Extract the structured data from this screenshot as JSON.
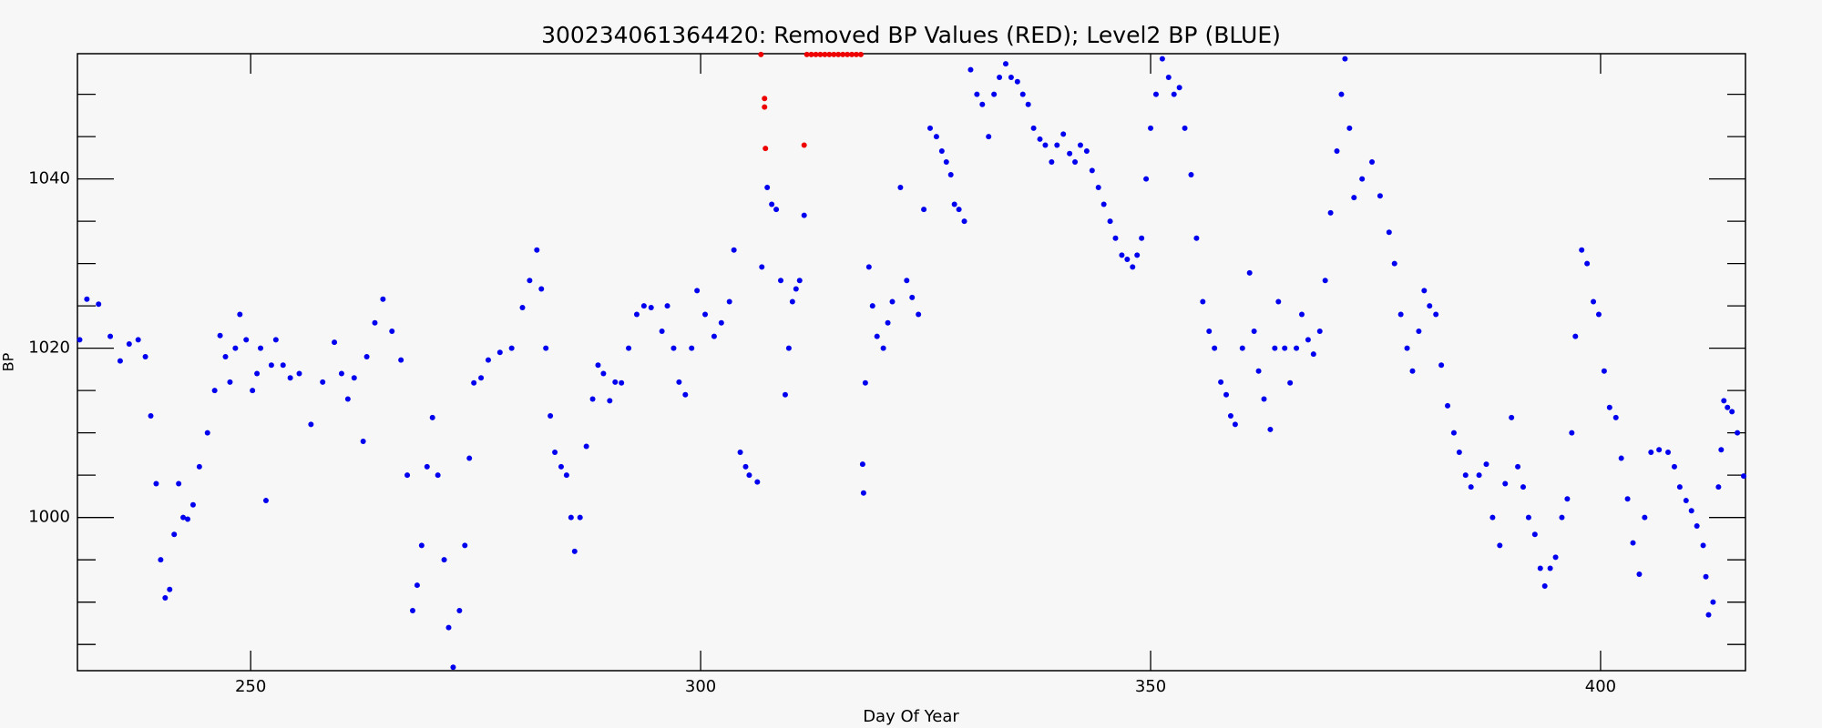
{
  "chart_data": {
    "type": "scatter",
    "title": "300234061364420: Removed BP Values (RED); Level2 BP (BLUE)",
    "xlabel": "Day Of Year",
    "ylabel": "BP",
    "xlim": [
      230.75,
      416.1
    ],
    "ylim": [
      981.9,
      1054.8
    ],
    "xticks": [
      250,
      300,
      350,
      400
    ],
    "yticks": [
      1000,
      1020,
      1040
    ],
    "yminor_ticks": [
      985,
      990,
      995,
      1005,
      1010,
      1015,
      1025,
      1030,
      1035,
      1045,
      1050
    ],
    "series": [
      {
        "color": "#0000ee",
        "x": [
          231,
          231.8,
          233.1,
          234.4,
          235.5,
          236.5,
          237.5,
          238.3,
          238.9,
          239.5,
          240,
          240.5,
          241,
          241.5,
          242,
          242.5,
          243,
          243.6,
          244.3,
          245.2,
          246,
          246.6,
          247.2,
          247.7,
          248.3,
          248.8,
          249.5,
          250.2,
          250.7,
          251.1,
          251.7,
          252.3,
          252.8,
          253.6,
          254.4,
          255.4,
          256.7,
          258,
          259.3,
          260.1,
          260.8,
          261.5,
          262.5,
          262.9,
          263.8,
          264.7,
          265.7,
          266.7,
          267.4,
          268,
          268.5,
          269,
          269.6,
          270.2,
          270.8,
          271.5,
          272,
          272.5,
          273.2,
          273.8,
          274.3,
          274.8,
          275.6,
          276.4,
          277.7,
          279,
          280.2,
          281,
          281.8,
          282.3,
          282.8,
          283.3,
          283.8,
          284.5,
          285.1,
          285.6,
          286,
          286.6,
          287.3,
          288,
          288.6,
          289.2,
          289.9,
          290.5,
          291.2,
          292,
          292.9,
          293.7,
          294.5,
          295.7,
          296.3,
          297,
          297.6,
          298.3,
          299,
          299.6,
          300.5,
          301.5,
          302.3,
          303.2,
          303.7,
          304.4,
          305,
          305.4,
          306.3,
          306.8,
          307.4,
          307.9,
          308.4,
          308.9,
          309.4,
          309.8,
          310.2,
          310.6,
          311,
          311.5,
          318,
          318.1,
          318.3,
          318.7,
          319.1,
          319.6,
          320.3,
          320.8,
          321.3,
          322.2,
          322.9,
          323.5,
          324.2,
          324.8,
          325.5,
          326.2,
          326.8,
          327.3,
          327.8,
          328.2,
          328.7,
          329.3,
          330,
          330.7,
          331.3,
          332,
          332.6,
          333.2,
          333.9,
          334.5,
          335.2,
          335.8,
          336.4,
          337,
          337.7,
          338.3,
          339,
          339.6,
          340.3,
          341,
          341.6,
          342.2,
          342.9,
          343.5,
          344.2,
          344.8,
          345.5,
          346.1,
          346.8,
          347.4,
          348,
          348.5,
          349,
          349.5,
          350,
          350.6,
          351.3,
          352,
          352.6,
          353.2,
          353.8,
          354.5,
          355.1,
          355.8,
          356.5,
          357.1,
          357.8,
          358.4,
          358.9,
          359.4,
          360.2,
          361,
          361.5,
          362,
          362.6,
          363.3,
          363.8,
          364.2,
          364.9,
          365.5,
          366.2,
          366.8,
          367.5,
          368.1,
          368.8,
          369.4,
          370,
          370.7,
          371.2,
          371.6,
          372.1,
          372.6,
          373.5,
          374.6,
          375.5,
          376.5,
          377.1,
          377.8,
          378.5,
          379.1,
          379.8,
          380.4,
          381,
          381.7,
          382.3,
          383,
          383.7,
          384.3,
          385,
          385.6,
          386.5,
          387.3,
          388,
          388.8,
          389.4,
          390.1,
          390.8,
          391.4,
          392,
          392.7,
          393.3,
          393.8,
          394.4,
          395,
          395.7,
          396.3,
          396.8,
          397.2,
          397.9,
          398.5,
          399.2,
          399.8,
          400.4,
          401,
          401.7,
          402.3,
          403,
          403.6,
          404.3,
          404.9,
          405.6,
          406.5,
          407.5,
          408.2,
          408.8,
          409.5,
          410.1,
          410.7,
          411.4,
          411.7,
          412,
          412.5,
          413.1,
          413.4,
          413.7,
          414.1,
          414.6,
          415.2,
          415.9
        ],
        "values": [
          1021,
          1025.8,
          1025.2,
          1021.4,
          1018.5,
          1020.5,
          1021,
          1019,
          1012,
          1004,
          995,
          990.5,
          991.5,
          998,
          1004,
          1000,
          999.8,
          1001.5,
          1006,
          1010,
          1015,
          1021.5,
          1019,
          1016,
          1020,
          1024,
          1021,
          1015,
          1017,
          1020,
          1002,
          1018,
          1021,
          1018,
          1016.5,
          1017,
          1011,
          1016,
          1020.7,
          1017,
          1014,
          1016.5,
          1009,
          1019,
          1023,
          1025.8,
          1022,
          1018.6,
          1005,
          989,
          992,
          996.7,
          1006,
          1011.8,
          1005,
          995,
          987,
          982.3,
          989,
          996.7,
          1007,
          1015.9,
          1016.5,
          1018.6,
          1019.5,
          1020,
          1024.8,
          1028,
          1031.6,
          1027,
          1020,
          1012,
          1007.7,
          1006,
          1005,
          1000,
          996,
          1000,
          1008.4,
          1014,
          1018,
          1017,
          1013.8,
          1016,
          1015.9,
          1020,
          1024,
          1025,
          1024.8,
          1022,
          1025,
          1020,
          1016,
          1014.5,
          1020,
          1026.8,
          1024,
          1021.4,
          1023,
          1025.5,
          1031.6,
          1007.7,
          1006,
          1005,
          1004.2,
          1029.6,
          1039,
          1037,
          1036.4,
          1028,
          1014.5,
          1020,
          1025.5,
          1027,
          1028,
          1035.7,
          1006.3,
          1002.9,
          1015.9,
          1029.6,
          1025,
          1021.4,
          1020,
          1023,
          1025.5,
          1039,
          1028,
          1026,
          1024,
          1036.4,
          1046,
          1045,
          1043.3,
          1042,
          1040.5,
          1037,
          1036.4,
          1035,
          1052.9,
          1050,
          1048.8,
          1045,
          1050,
          1052,
          1053.6,
          1052,
          1051.5,
          1050,
          1048.8,
          1046,
          1044.7,
          1044,
          1042,
          1044,
          1045.3,
          1043,
          1042,
          1044,
          1043.3,
          1041,
          1039,
          1037,
          1035,
          1033,
          1031,
          1030.5,
          1029.6,
          1031,
          1033,
          1040,
          1046,
          1050,
          1054.2,
          1052,
          1050,
          1050.8,
          1046,
          1040.5,
          1033,
          1025.5,
          1022,
          1020,
          1016,
          1014.5,
          1012,
          1011,
          1020,
          1028.9,
          1022,
          1017.3,
          1014,
          1010.4,
          1020,
          1025.5,
          1020,
          1015.9,
          1020,
          1024,
          1021,
          1019.3,
          1022,
          1028,
          1036,
          1043.3,
          1050,
          1054.2,
          1046,
          1037.8,
          1040,
          1042,
          1038,
          1033.7,
          1030,
          1024,
          1020,
          1017.3,
          1022,
          1026.8,
          1025,
          1024,
          1018,
          1013.2,
          1010,
          1007.7,
          1005,
          1003.6,
          1005,
          1006.3,
          1000,
          996.7,
          1004,
          1011.8,
          1006,
          1003.6,
          1000,
          998,
          994,
          991.9,
          994,
          995.3,
          1000,
          1002.2,
          1010,
          1021.4,
          1031.6,
          1030,
          1025.5,
          1024,
          1017.3,
          1013,
          1011.8,
          1007,
          1002.2,
          997,
          993.3,
          1000,
          1007.7,
          1008,
          1007.7,
          1006,
          1003.6,
          1002,
          1000.8,
          999,
          996.7,
          993,
          988.5,
          990,
          1003.6,
          1008,
          1013.8,
          1013,
          1012.5,
          1010,
          1004.9
        ]
      },
      {
        "color": "#ee0000",
        "x": [
          306.7,
          307.1,
          307.1,
          307.2,
          311.5,
          311.8,
          312.3,
          312.8,
          313.3,
          313.8,
          314.3,
          314.8,
          315.3,
          315.8,
          316.3,
          316.8,
          317.3,
          317.8
        ],
        "values": [
          1054.7,
          1049.5,
          1048.5,
          1043.6,
          1044,
          1054.7,
          1054.7,
          1054.7,
          1054.7,
          1054.7,
          1054.7,
          1054.7,
          1054.7,
          1054.7,
          1054.7,
          1054.7,
          1054.7,
          1054.7
        ]
      }
    ]
  }
}
